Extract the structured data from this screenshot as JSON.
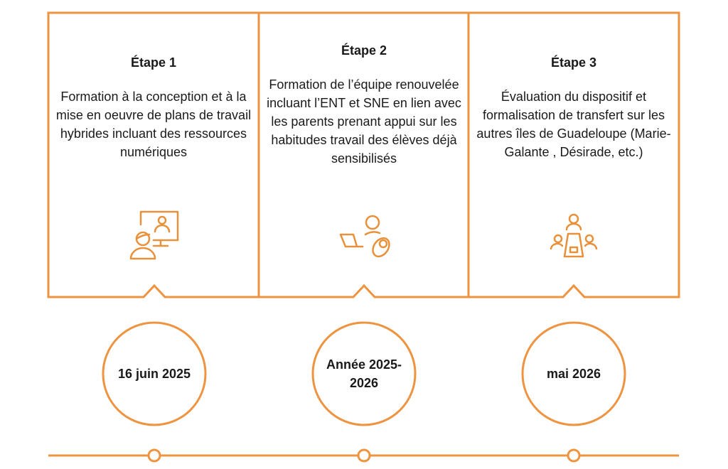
{
  "accent_color": "#EE9340",
  "steps": [
    {
      "title": "Étape 1",
      "body": "Formation à la conception et à la mise en oeuvre de plans de travail hybrides incluant des ressources numériques",
      "icon": "teacher-screen-icon",
      "date": "16 juin 2025"
    },
    {
      "title": "Étape 2",
      "body": "Formation de l’équipe renouvelée incluant l’ENT et SNE en lien avec les parents prenant appui sur les habitudes travail des élèves déjà sensibilisés",
      "icon": "parent-baby-laptop-icon",
      "date": "Année 2025-2026"
    },
    {
      "title": "Étape 3",
      "body": "Évaluation du dispositif et formalisation de transfert sur les autres îles de Guadeloupe (Marie-Galante , Désirade, etc.)",
      "icon": "meeting-table-icon",
      "date": "mai 2026"
    }
  ]
}
